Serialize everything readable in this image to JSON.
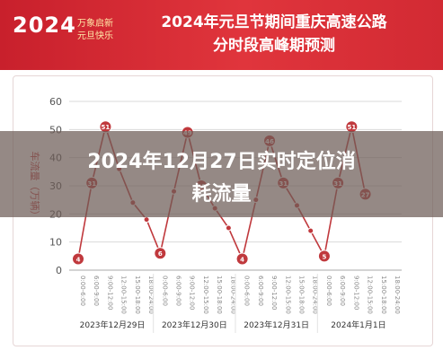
{
  "banner": {
    "logo_year": "2024",
    "logo_line1": "万象启新",
    "logo_line2": "元旦快乐",
    "headline_line1": "2024年元旦节期间重庆高速公路",
    "headline_line2": "分时段高峰期预测"
  },
  "overlay": {
    "title_line1": "2024年12月27日实时定位消",
    "title_line2": "耗流量"
  },
  "colors": {
    "banner": "#d52a33",
    "line": "#c0393d",
    "marker": "#c0393d",
    "grid": "#d9d9d9",
    "overlay": "#6c5c56"
  },
  "chart_data": {
    "type": "line",
    "ylabel": "车流量（万辆）",
    "ylim": [
      0,
      60
    ],
    "yticks": [
      "0",
      "10",
      "20",
      "30",
      "40",
      "50",
      "60"
    ],
    "x": [
      "0:00-6:00",
      "6:00-9:00",
      "9:00-12:00",
      "12:00-15:00",
      "15:00-18:00",
      "18:00-24:00",
      "0:00-6:00",
      "6:00-9:00",
      "9:00-12:00",
      "12:00-15:00",
      "15:00-18:00",
      "18:00-24:00",
      "0:00-6:00",
      "6:00-9:00",
      "9:00-12:00",
      "12:00-15:00",
      "15:00-18:00",
      "18:00-24:00",
      "0:00-6:00",
      "6:00-9:00",
      "9:00-12:00",
      "12:00-15:00",
      "15:00-18:00",
      "18:00-24:00"
    ],
    "groups": [
      "2023年12月29日",
      "2023年12月30日",
      "2023年12月31日",
      "2024年1月1日"
    ],
    "series": [
      {
        "values": [
          4,
          31,
          51,
          36,
          24,
          18,
          6,
          28,
          49,
          30,
          22,
          15,
          4,
          25,
          46,
          31,
          23,
          14,
          5,
          31,
          51,
          27,
          null,
          null
        ]
      }
    ],
    "labels_shown": [
      4,
      31,
      51,
      6,
      49,
      30,
      4,
      46,
      31,
      5,
      31,
      51,
      27
    ],
    "grid": true,
    "legend": "none"
  }
}
